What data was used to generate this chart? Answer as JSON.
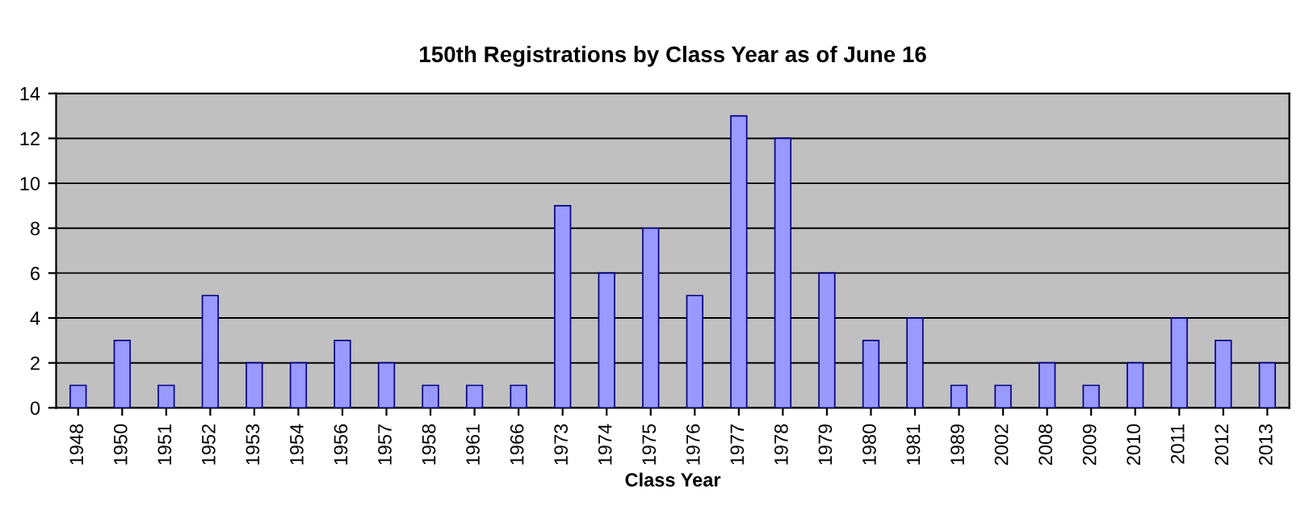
{
  "chart_data": {
    "type": "bar",
    "title": "150th Registrations by Class Year as of June 16",
    "xlabel": "Class Year",
    "categories": [
      "1948",
      "1950",
      "1951",
      "1952",
      "1953",
      "1954",
      "1956",
      "1957",
      "1958",
      "1961",
      "1966",
      "1973",
      "1974",
      "1975",
      "1976",
      "1977",
      "1978",
      "1979",
      "1980",
      "1981",
      "1989",
      "2002",
      "2008",
      "2009",
      "2010",
      "2011",
      "2012",
      "2013"
    ],
    "values": [
      1,
      3,
      1,
      5,
      2,
      2,
      3,
      2,
      1,
      1,
      1,
      9,
      6,
      8,
      5,
      13,
      12,
      6,
      3,
      4,
      1,
      1,
      2,
      1,
      2,
      4,
      3,
      2
    ],
    "color": "#9999ff",
    "ylim": [
      0,
      14
    ],
    "yticks": [
      0,
      2,
      4,
      6,
      8,
      10,
      12,
      14
    ],
    "grid": "y",
    "legend": false
  }
}
